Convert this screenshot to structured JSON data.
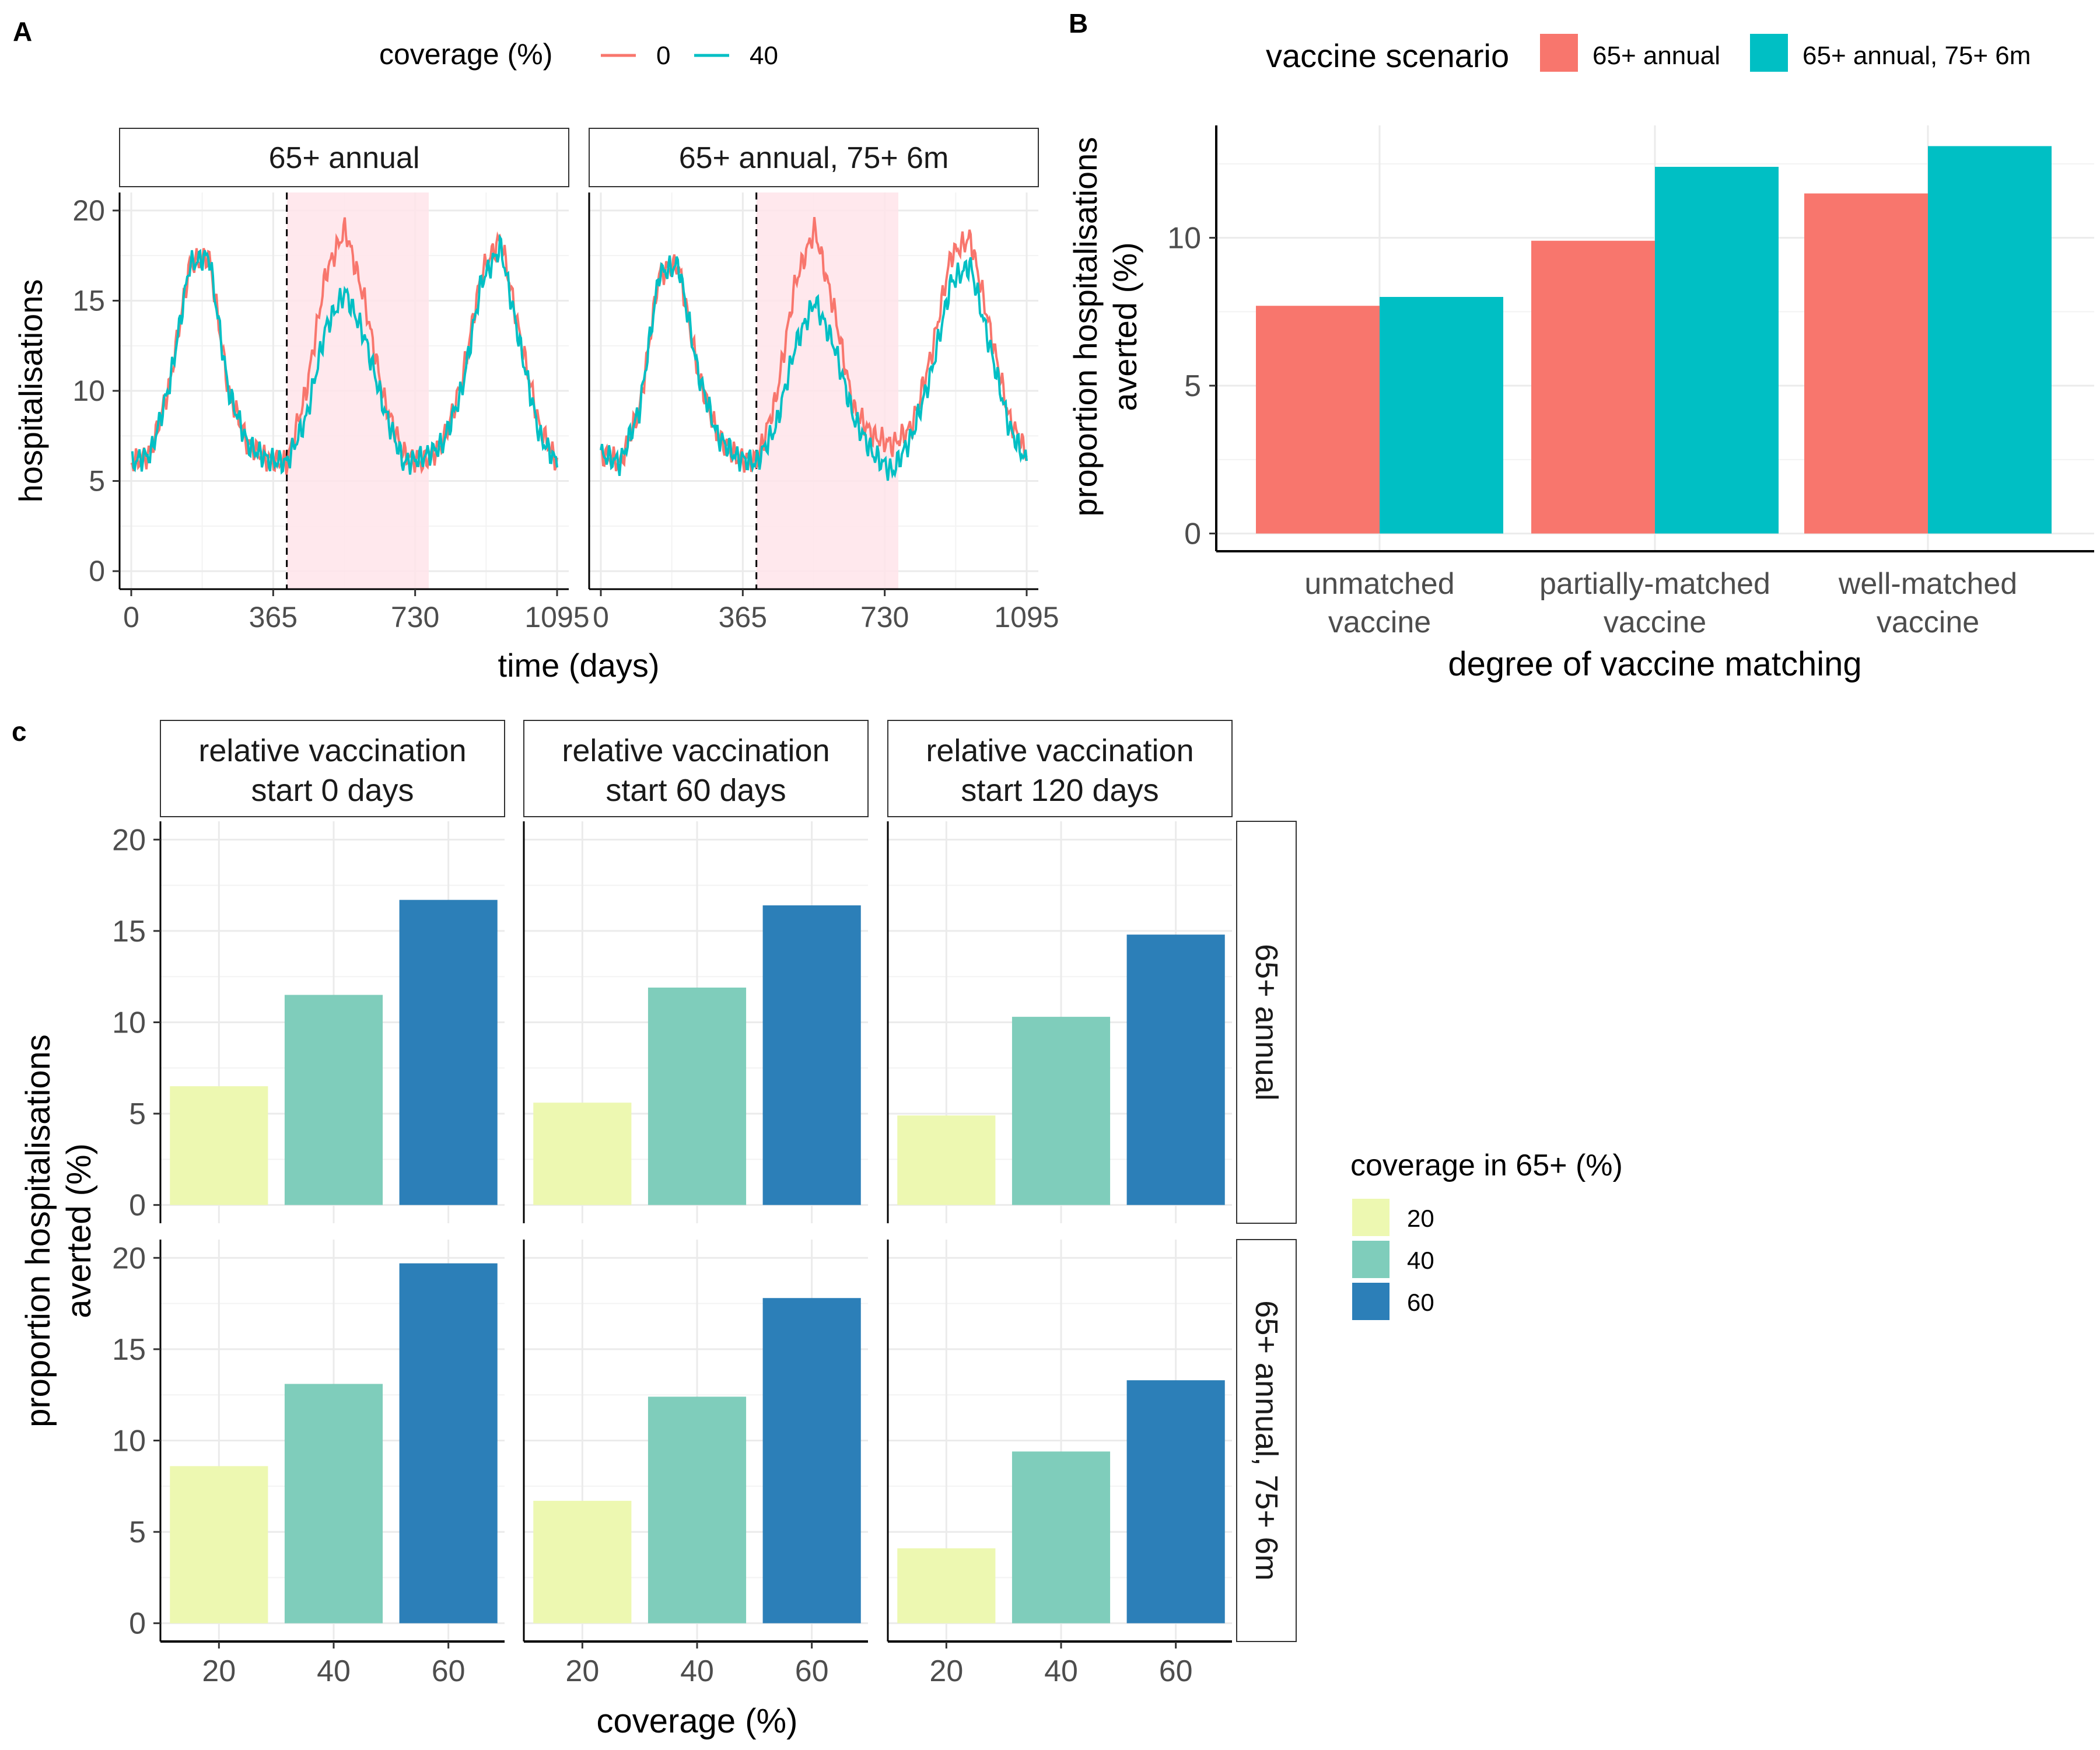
{
  "panel_labels": {
    "a": "A",
    "b": "B",
    "c": "c"
  },
  "colors": {
    "red": "#F8766D",
    "teal": "#00BFC4",
    "shade": "#FFE4EA",
    "light": "#EDF8B1",
    "mid": "#7FCDBB",
    "dark": "#2C7FB8",
    "grid": "#EBEBEB",
    "axis_text": "#4D4D4D"
  },
  "chart_data": [
    {
      "id": "A",
      "type": "line",
      "xlabel": "time (days)",
      "ylabel": "hospitalisations",
      "xlim": [
        -30,
        1125
      ],
      "ylim": [
        -1,
        21
      ],
      "x_ticks": [
        "0",
        "365",
        "730",
        "1095"
      ],
      "y_ticks": [
        "0",
        "5",
        "10",
        "15",
        "20"
      ],
      "legend": {
        "title": "coverage (%)",
        "placement": "top",
        "entries": [
          "0",
          "40"
        ]
      },
      "vaccination_start_day": 400,
      "shaded_window_days": [
        400,
        765
      ],
      "facets": [
        {
          "strip": "65+ annual",
          "series": [
            {
              "name": "0",
              "x": [
                0,
                50,
                100,
                150,
                200,
                250,
                300,
                350,
                400,
                450,
                500,
                550,
                600,
                650,
                700,
                750,
                800,
                850,
                900,
                950,
                1000,
                1050,
                1095
              ],
              "y": [
                6.0,
                6.5,
                10.5,
                17.0,
                17.5,
                10.0,
                7.0,
                6.2,
                6.0,
                10.0,
                16.5,
                19.0,
                15.0,
                9.5,
                6.5,
                6.0,
                7.0,
                10.5,
                16.5,
                18.5,
                13.0,
                8.0,
                6.0
              ]
            },
            {
              "name": "40",
              "x": [
                0,
                50,
                100,
                150,
                200,
                250,
                300,
                350,
                400,
                450,
                500,
                550,
                600,
                650,
                700,
                750,
                800,
                850,
                900,
                950,
                1000,
                1050,
                1095
              ],
              "y": [
                6.0,
                6.5,
                10.5,
                17.0,
                17.5,
                10.0,
                7.0,
                6.2,
                6.0,
                8.5,
                13.5,
                15.5,
                13.0,
                9.0,
                6.0,
                6.3,
                7.0,
                10.0,
                16.0,
                18.0,
                12.5,
                7.5,
                6.0
              ]
            }
          ]
        },
        {
          "strip": "65+ annual, 75+ 6m",
          "series": [
            {
              "name": "0",
              "x": [
                0,
                50,
                100,
                150,
                200,
                250,
                300,
                350,
                400,
                450,
                500,
                550,
                600,
                650,
                700,
                750,
                800,
                850,
                900,
                950,
                1000,
                1050,
                1095
              ],
              "y": [
                6.5,
                6.0,
                9.0,
                16.5,
                17.0,
                11.0,
                7.5,
                6.3,
                6.0,
                9.5,
                16.0,
                19.0,
                14.5,
                9.0,
                7.5,
                7.0,
                8.0,
                12.0,
                17.5,
                18.5,
                13.5,
                8.5,
                6.5
              ]
            },
            {
              "name": "40",
              "x": [
                0,
                50,
                100,
                150,
                200,
                250,
                300,
                350,
                400,
                450,
                500,
                550,
                600,
                650,
                700,
                750,
                800,
                850,
                900,
                950,
                1000,
                1050,
                1095
              ],
              "y": [
                6.5,
                6.0,
                9.0,
                16.5,
                17.0,
                11.0,
                7.5,
                6.3,
                6.0,
                8.0,
                12.5,
                15.0,
                12.5,
                8.5,
                6.5,
                5.5,
                7.5,
                11.0,
                16.0,
                17.0,
                12.5,
                8.0,
                6.0
              ]
            }
          ]
        }
      ]
    },
    {
      "id": "B",
      "type": "bar",
      "xlabel": "degree of vaccine matching",
      "ylabel": "proportion hospitalisations averted (%)",
      "ylim": [
        -0.6,
        13.8
      ],
      "y_ticks": [
        "0",
        "5",
        "10"
      ],
      "categories": [
        "unmatched vaccine",
        "partially-matched vaccine",
        "well-matched vaccine"
      ],
      "legend": {
        "title": "vaccine scenario",
        "placement": "top"
      },
      "series": [
        {
          "name": "65+ annual",
          "values": [
            7.7,
            9.9,
            11.5
          ]
        },
        {
          "name": "65+ annual, 75+ 6m",
          "values": [
            8.0,
            12.4,
            13.1
          ]
        }
      ]
    },
    {
      "id": "C",
      "type": "bar",
      "xlabel": "coverage (%)",
      "ylabel": "proportion hospitalisations averted (%)",
      "ylim": [
        -1,
        21
      ],
      "y_ticks": [
        "0",
        "5",
        "10",
        "15",
        "20"
      ],
      "categories": [
        "20",
        "40",
        "60"
      ],
      "legend": {
        "title": "coverage in 65+ (%)",
        "placement": "right",
        "entries": [
          "20",
          "40",
          "60"
        ]
      },
      "column_strips": [
        "relative vaccination start 0 days",
        "relative vaccination start 60 days",
        "relative vaccination start 120 days"
      ],
      "row_strips": [
        "65+ annual",
        "65+ annual, 75+ 6m"
      ],
      "values": [
        [
          [
            6.5,
            11.5,
            16.7
          ],
          [
            5.6,
            11.9,
            16.4
          ],
          [
            4.9,
            10.3,
            14.8
          ]
        ],
        [
          [
            8.6,
            13.1,
            19.7
          ],
          [
            6.7,
            12.4,
            17.8
          ],
          [
            4.1,
            9.4,
            13.3
          ]
        ]
      ]
    }
  ]
}
